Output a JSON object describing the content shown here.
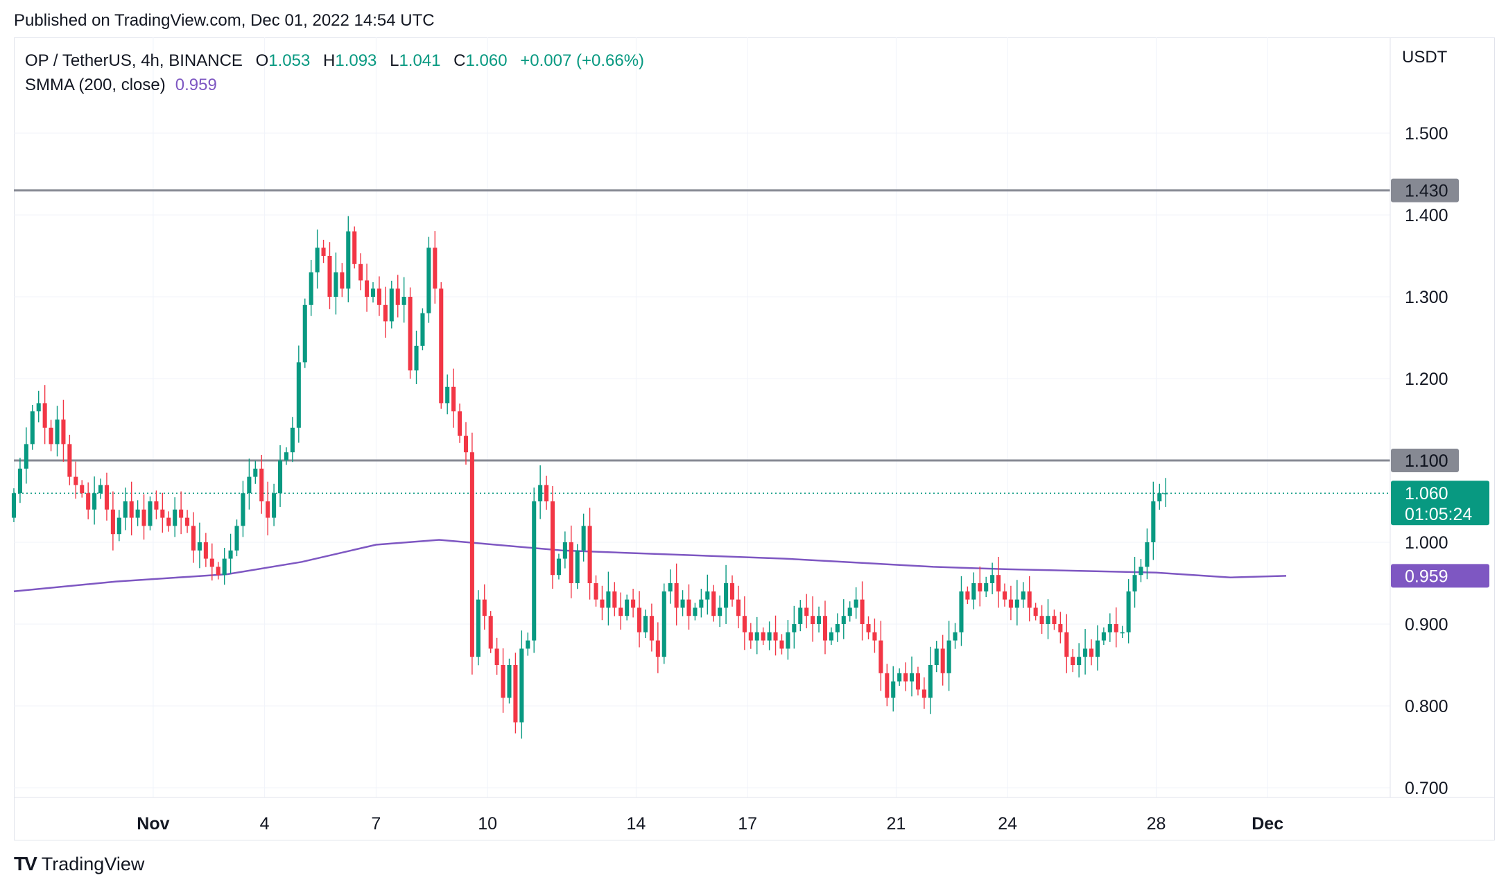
{
  "published": "Published on TradingView.com, Dec 01, 2022 14:54 UTC",
  "legend": {
    "symbol": "OP / TetherUS, 4h, BINANCE",
    "o_label": "O",
    "o": "1.053",
    "h_label": "H",
    "h": "1.093",
    "l_label": "L",
    "l": "1.041",
    "c_label": "C",
    "c": "1.060",
    "change": "+0.007 (+0.66%)",
    "indicator": "SMMA (200, close)",
    "indicator_value": "0.959"
  },
  "footer": {
    "logo": "TV",
    "name": "TradingView"
  },
  "colors": {
    "up": "#089981",
    "down": "#f23645",
    "smma": "#7e57c2",
    "level": "#868993",
    "grid": "#f0f3fa"
  },
  "chart_data": {
    "type": "candlestick",
    "currency": "USDT",
    "ylim": [
      0.69,
      1.58
    ],
    "y_ticks": [
      "0.700",
      "0.800",
      "0.900",
      "1.000",
      "1.100",
      "1.200",
      "1.300",
      "1.400",
      "1.500"
    ],
    "x_tick_labels": [
      "Nov",
      "4",
      "7",
      "10",
      "14",
      "17",
      "21",
      "24",
      "28",
      "Dec"
    ],
    "x_tick_days": [
      1,
      4,
      7,
      10,
      14,
      17,
      21,
      24,
      28,
      31
    ],
    "x_range_days": [
      -2.75,
      34.3
    ],
    "horizontal_levels": [
      {
        "value": 1.43,
        "label": "1.430"
      },
      {
        "value": 1.1,
        "label": "1.100"
      }
    ],
    "last_price": {
      "value": 1.06,
      "label": "1.060",
      "countdown": "01:05:24"
    },
    "smma": {
      "name": "SMMA (200, close)",
      "label": "0.959",
      "x_days": [
        -2.75,
        0,
        2,
        3,
        5,
        7,
        8.7,
        12,
        18,
        22,
        24,
        28,
        30,
        31.5
      ],
      "values": [
        0.94,
        0.952,
        0.958,
        0.961,
        0.976,
        0.997,
        1.003,
        0.99,
        0.98,
        0.97,
        0.967,
        0.963,
        0.957,
        0.959
      ]
    },
    "candle_interval_days": 0.1667,
    "candle_start_day": -2.75,
    "closes": [
      1.06,
      1.09,
      1.12,
      1.16,
      1.17,
      1.14,
      1.12,
      1.15,
      1.12,
      1.08,
      1.07,
      1.06,
      1.04,
      1.06,
      1.07,
      1.04,
      1.01,
      1.03,
      1.05,
      1.03,
      1.04,
      1.02,
      1.05,
      1.04,
      1.03,
      1.02,
      1.04,
      1.03,
      1.02,
      0.99,
      1.0,
      0.98,
      0.97,
      0.96,
      0.98,
      0.99,
      1.02,
      1.06,
      1.08,
      1.09,
      1.05,
      1.03,
      1.06,
      1.1,
      1.11,
      1.14,
      1.22,
      1.29,
      1.33,
      1.36,
      1.35,
      1.3,
      1.33,
      1.31,
      1.38,
      1.34,
      1.32,
      1.3,
      1.31,
      1.29,
      1.27,
      1.31,
      1.29,
      1.3,
      1.21,
      1.24,
      1.28,
      1.36,
      1.31,
      1.17,
      1.19,
      1.16,
      1.13,
      1.11,
      0.86,
      0.93,
      0.91,
      0.87,
      0.85,
      0.81,
      0.85,
      0.78,
      0.87,
      0.88,
      1.05,
      1.07,
      1.05,
      0.96,
      0.98,
      1.0,
      0.95,
      0.99,
      1.02,
      0.95,
      0.93,
      0.92,
      0.94,
      0.92,
      0.91,
      0.93,
      0.92,
      0.89,
      0.91,
      0.88,
      0.86,
      0.94,
      0.95,
      0.92,
      0.93,
      0.91,
      0.92,
      0.93,
      0.94,
      0.91,
      0.92,
      0.95,
      0.93,
      0.91,
      0.89,
      0.88,
      0.89,
      0.88,
      0.89,
      0.88,
      0.87,
      0.89,
      0.9,
      0.92,
      0.91,
      0.9,
      0.91,
      0.88,
      0.89,
      0.9,
      0.91,
      0.92,
      0.93,
      0.9,
      0.89,
      0.88,
      0.84,
      0.81,
      0.83,
      0.84,
      0.83,
      0.84,
      0.82,
      0.81,
      0.85,
      0.87,
      0.84,
      0.88,
      0.89,
      0.94,
      0.93,
      0.95,
      0.94,
      0.95,
      0.96,
      0.94,
      0.93,
      0.92,
      0.93,
      0.94,
      0.92,
      0.91,
      0.9,
      0.91,
      0.9,
      0.89,
      0.86,
      0.85,
      0.86,
      0.87,
      0.86,
      0.88,
      0.89,
      0.9,
      0.89,
      0.89,
      0.94,
      0.96,
      0.97,
      1.0,
      1.05,
      1.06,
      1.06
    ]
  }
}
